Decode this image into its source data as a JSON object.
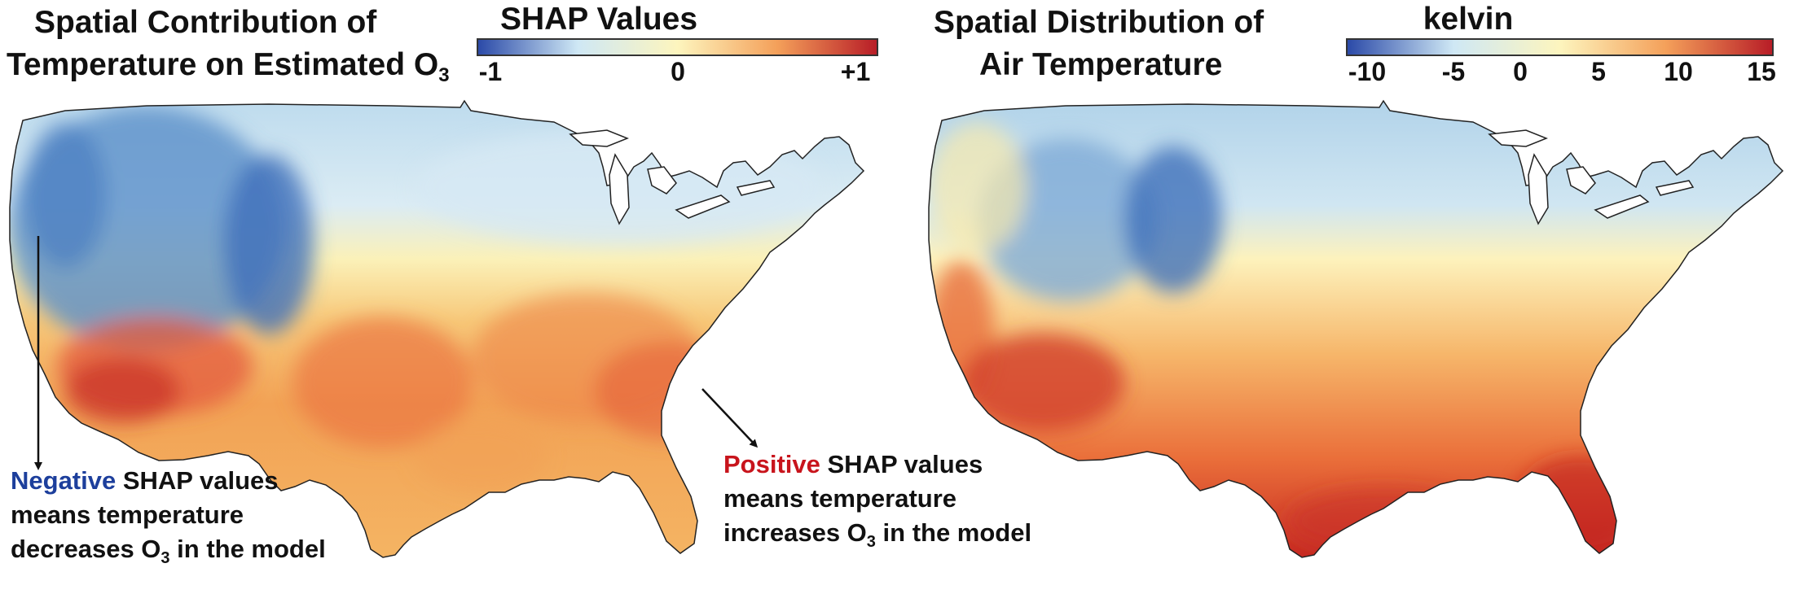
{
  "left_panel": {
    "title_line1": "Spatial Contribution of",
    "title_line2_main": "Temperature on Estimated O",
    "title_line2_sub": "3",
    "colorbar": {
      "title": "SHAP Values",
      "ticks": [
        "-1",
        "0",
        "+1"
      ],
      "colors": [
        "#2b4aa8",
        "#cfe8f5",
        "#fdf5be",
        "#f4a05a",
        "#b81d27"
      ]
    },
    "annotation_negative": {
      "highlight": "Negative",
      "rest_line1": " SHAP values",
      "line2": "means temperature",
      "line3_main": "decreases O",
      "line3_sub": "3",
      "line3_end": " in the model",
      "color": "#1d3f9c"
    },
    "annotation_positive": {
      "highlight": "Positive",
      "rest_line1": " SHAP values",
      "line2": "means temperature",
      "line3_main": "increases O",
      "line3_sub": "3",
      "line3_end": " in the model",
      "color": "#c8141c"
    }
  },
  "right_panel": {
    "title_line1": "Spatial Distribution of",
    "title_line2": "Air Temperature",
    "colorbar": {
      "title": "kelvin",
      "ticks": [
        "-10",
        "-5",
        "0",
        "5",
        "10",
        "15"
      ],
      "colors": [
        "#2b4aa8",
        "#cfe8f5",
        "#fdf5be",
        "#f4a05a",
        "#b81d27"
      ]
    }
  }
}
